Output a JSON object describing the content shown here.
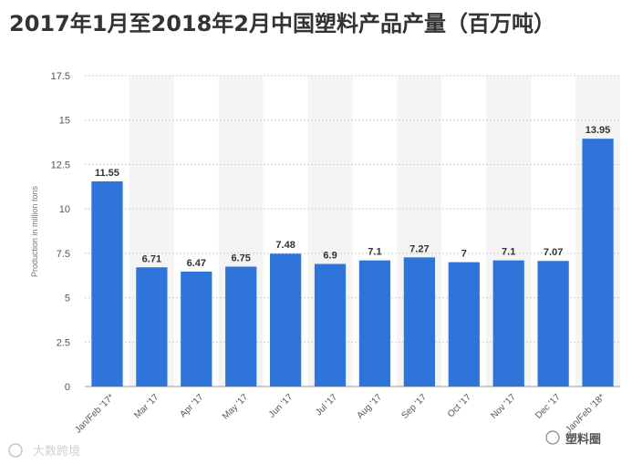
{
  "title": "2017年1月至2018年2月中国塑料产品产量（百万吨）",
  "watermarks": {
    "left": "大数跨境",
    "right": "塑料圈"
  },
  "colors": {
    "bar": "#2f74d8",
    "band": "#f4f4f4",
    "grid": "#cfcfcf",
    "title": "#333333"
  },
  "chart_data": {
    "type": "bar",
    "title": "2017年1月至2018年2月中国塑料产品产量（百万吨）",
    "xlabel": "",
    "ylabel": "Production in million tons",
    "categories": [
      "Jan/Feb '17*",
      "Mar '17",
      "Apr '17",
      "May '17",
      "Jun '17",
      "Jul '17",
      "Aug '17",
      "Sep '17",
      "Oct '17",
      "Nov '17",
      "Dec '17",
      "Jan/Feb '18*"
    ],
    "values": [
      11.55,
      6.71,
      6.47,
      6.75,
      7.48,
      6.9,
      7.1,
      7.27,
      7,
      7.1,
      7.07,
      13.95
    ],
    "value_labels": [
      "11.55",
      "6.71",
      "6.47",
      "6.75",
      "7.48",
      "6.9",
      "7.1",
      "7.27",
      "7",
      "7.1",
      "7.07",
      "13.95"
    ],
    "ylim": [
      0,
      17.5
    ],
    "yticks": [
      "0",
      "2.5",
      "5",
      "7.5",
      "10",
      "12.5",
      "15",
      "17.5"
    ],
    "grid": true,
    "legend": "none"
  }
}
